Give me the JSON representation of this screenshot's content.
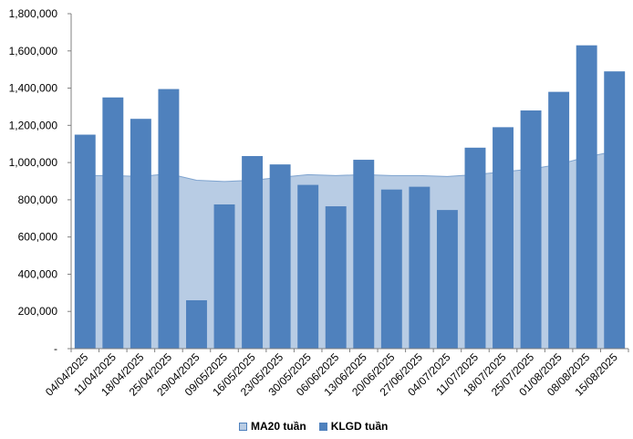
{
  "chart_data": {
    "type": "bar",
    "categories": [
      "04/04/2025",
      "11/04/2025",
      "18/04/2025",
      "25/04/2025",
      "29/04/2025",
      "09/05/2025",
      "16/05/2025",
      "23/05/2025",
      "30/05/2025",
      "06/06/2025",
      "13/06/2025",
      "20/06/2025",
      "27/06/2025",
      "04/07/2025",
      "11/07/2025",
      "18/07/2025",
      "25/07/2025",
      "01/08/2025",
      "08/08/2025",
      "15/08/2025"
    ],
    "series": [
      {
        "name": "MA20 tuần",
        "type": "area",
        "color": "#b8cce4",
        "values": [
          930000,
          930000,
          925000,
          940000,
          905000,
          898000,
          905000,
          920000,
          935000,
          930000,
          935000,
          930000,
          930000,
          925000,
          935000,
          950000,
          965000,
          990000,
          1030000,
          1060000
        ]
      },
      {
        "name": "KLGD tuần",
        "type": "bar",
        "color": "#4f81bd",
        "values": [
          1150000,
          1350000,
          1235000,
          1395000,
          260000,
          775000,
          1035000,
          990000,
          880000,
          765000,
          1015000,
          855000,
          870000,
          745000,
          1080000,
          1190000,
          1280000,
          1380000,
          1630000,
          1490000
        ]
      }
    ],
    "ylim": [
      0,
      1800000
    ],
    "yticks": [
      "-",
      "200,000",
      "400,000",
      "600,000",
      "800,000",
      "1,000,000",
      "1,200,000",
      "1,400,000",
      "1,600,000",
      "1,800,000"
    ],
    "legend_position": "bottom",
    "grid": false
  }
}
